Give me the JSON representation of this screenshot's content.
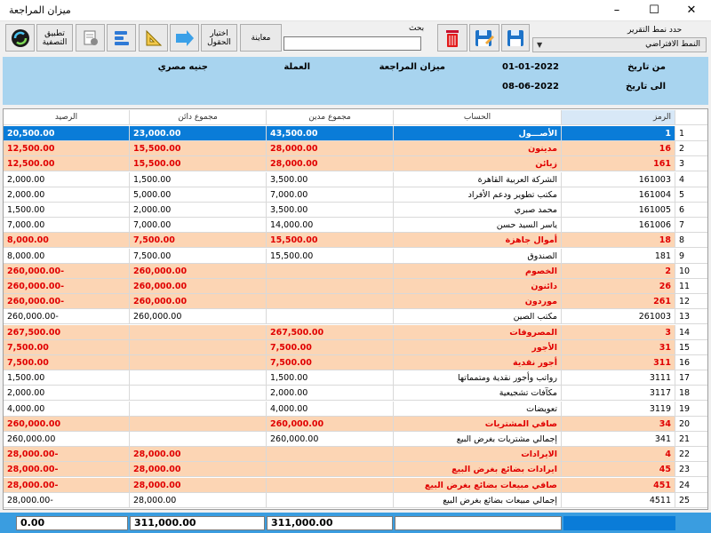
{
  "window": {
    "title": "ميزان المراجعة"
  },
  "toolbar": {
    "apply_filter": "تطبيق التصفية",
    "choose_fields": "اختيار الحقول",
    "preview": "معاينة",
    "search_label": "بحث",
    "search_value": "",
    "report_label": "حدد نمط التقرير",
    "report_value": "النمط الافتراضي"
  },
  "info": {
    "from_date_label": "من تاريخ",
    "to_date_label": "الى تاريخ",
    "from_date": "01-01-2022",
    "to_date": "08-06-2022",
    "report_name": "ميزان المراجعة",
    "currency_label": "العملة",
    "currency": "جنيه مصري"
  },
  "columns": {
    "code": "الرمز",
    "account": "الحساب",
    "debit": "مجموع مدين",
    "credit": "مجموع دائن",
    "balance": "الرصيد"
  },
  "rows": [
    {
      "n": "1",
      "code": "1",
      "account": "الأصـــول",
      "debit": "43,500.00",
      "credit": "23,000.00",
      "balance": "20,500.00",
      "style": "selected"
    },
    {
      "n": "2",
      "code": "16",
      "account": "مدينون",
      "debit": "28,000.00",
      "credit": "15,500.00",
      "balance": "12,500.00",
      "style": "group"
    },
    {
      "n": "3",
      "code": "161",
      "account": "زبائن",
      "debit": "28,000.00",
      "credit": "15,500.00",
      "balance": "12,500.00",
      "style": "group"
    },
    {
      "n": "4",
      "code": "161003",
      "account": "الشركة العربية القاهرة",
      "debit": "3,500.00",
      "credit": "1,500.00",
      "balance": "2,000.00",
      "style": "normal"
    },
    {
      "n": "5",
      "code": "161004",
      "account": "مكتب تطوير ودعم الأفراد",
      "debit": "7,000.00",
      "credit": "5,000.00",
      "balance": "2,000.00",
      "style": "normal"
    },
    {
      "n": "6",
      "code": "161005",
      "account": "محمد صبري",
      "debit": "3,500.00",
      "credit": "2,000.00",
      "balance": "1,500.00",
      "style": "normal"
    },
    {
      "n": "7",
      "code": "161006",
      "account": "ياسر السيد حسن",
      "debit": "14,000.00",
      "credit": "7,000.00",
      "balance": "7,000.00",
      "style": "normal"
    },
    {
      "n": "8",
      "code": "18",
      "account": "أموال جاهزة",
      "debit": "15,500.00",
      "credit": "7,500.00",
      "balance": "8,000.00",
      "style": "group"
    },
    {
      "n": "9",
      "code": "181",
      "account": "الصندوق",
      "debit": "15,500.00",
      "credit": "7,500.00",
      "balance": "8,000.00",
      "style": "normal"
    },
    {
      "n": "10",
      "code": "2",
      "account": "الخصوم",
      "debit": "",
      "credit": "260,000.00",
      "balance": "260,000.00-",
      "style": "group"
    },
    {
      "n": "11",
      "code": "26",
      "account": "دائنون",
      "debit": "",
      "credit": "260,000.00",
      "balance": "260,000.00-",
      "style": "group"
    },
    {
      "n": "12",
      "code": "261",
      "account": "موردون",
      "debit": "",
      "credit": "260,000.00",
      "balance": "260,000.00-",
      "style": "group"
    },
    {
      "n": "13",
      "code": "261003",
      "account": "مكتب الصين",
      "debit": "",
      "credit": "260,000.00",
      "balance": "260,000.00-",
      "style": "normal"
    },
    {
      "n": "14",
      "code": "3",
      "account": "المصروفات",
      "debit": "267,500.00",
      "credit": "",
      "balance": "267,500.00",
      "style": "group"
    },
    {
      "n": "15",
      "code": "31",
      "account": "الأجور",
      "debit": "7,500.00",
      "credit": "",
      "balance": "7,500.00",
      "style": "group"
    },
    {
      "n": "16",
      "code": "311",
      "account": "أجور نقدية",
      "debit": "7,500.00",
      "credit": "",
      "balance": "7,500.00",
      "style": "group"
    },
    {
      "n": "17",
      "code": "3111",
      "account": "رواتب وأجور نقدية ومتمماتها",
      "debit": "1,500.00",
      "credit": "",
      "balance": "1,500.00",
      "style": "normal"
    },
    {
      "n": "18",
      "code": "3117",
      "account": "مكآفات تشجيعية",
      "debit": "2,000.00",
      "credit": "",
      "balance": "2,000.00",
      "style": "normal"
    },
    {
      "n": "19",
      "code": "3119",
      "account": "تعويضات",
      "debit": "4,000.00",
      "credit": "",
      "balance": "4,000.00",
      "style": "normal"
    },
    {
      "n": "20",
      "code": "34",
      "account": "صافي المشتريات",
      "debit": "260,000.00",
      "credit": "",
      "balance": "260,000.00",
      "style": "group"
    },
    {
      "n": "21",
      "code": "341",
      "account": "إجمالي مشتريات بغرض البيع",
      "debit": "260,000.00",
      "credit": "",
      "balance": "260,000.00",
      "style": "normal"
    },
    {
      "n": "22",
      "code": "4",
      "account": "الايرادات",
      "debit": "",
      "credit": "28,000.00",
      "balance": "28,000.00-",
      "style": "group"
    },
    {
      "n": "23",
      "code": "45",
      "account": "ايرادات بضائع بغرض البيع",
      "debit": "",
      "credit": "28,000.00",
      "balance": "28,000.00-",
      "style": "group"
    },
    {
      "n": "24",
      "code": "451",
      "account": "صافي مبيعات بضائع بغرض البيع",
      "debit": "",
      "credit": "28,000.00",
      "balance": "28,000.00-",
      "style": "group"
    },
    {
      "n": "25",
      "code": "4511",
      "account": "إجمالي مبيعات بضائع بغرض البيع",
      "debit": "",
      "credit": "28,000.00",
      "balance": "28,000.00-",
      "style": "normal"
    }
  ],
  "totals": {
    "balance": "0.00",
    "credit": "311,000.00",
    "debit": "311,000.00"
  },
  "colors": {
    "selected": "#0a7cd8",
    "group_bg": "#fcd5b4",
    "group_text": "#e00000",
    "info_bg": "#a8d4ef",
    "footer": "#3a9de0"
  }
}
